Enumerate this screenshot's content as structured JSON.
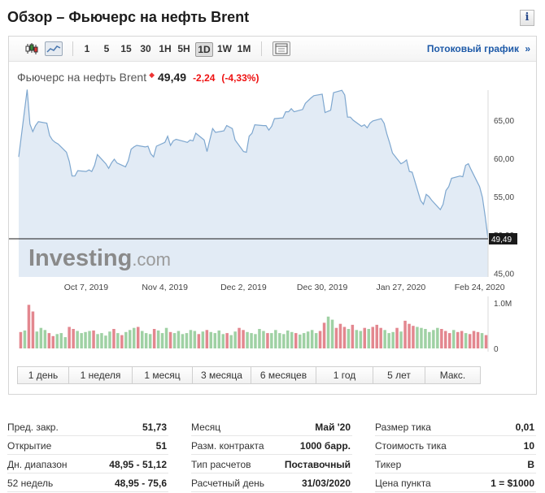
{
  "page": {
    "title": "Обзор – Фьючерс на нефть Brent",
    "info_icon": "i"
  },
  "toolbar": {
    "icons": [
      "candlestick-icon",
      "line-chart-icon"
    ],
    "timeframes": [
      "1",
      "5",
      "15",
      "30",
      "1H",
      "5H",
      "1D",
      "1W",
      "1M"
    ],
    "active_timeframe": "1D",
    "settings_icon": "chart-settings-icon",
    "stream_link": "Потоковый график",
    "stream_arrow": "»"
  },
  "quote": {
    "name": "Фьючерс на нефть Brent",
    "indicator": "◆",
    "price": "49,49",
    "change": "-2,24",
    "change_pct": "(-4,33%)"
  },
  "chart_data": {
    "type": "area",
    "x_tick_labels": [
      "Oct 7, 2019",
      "Nov 4, 2019",
      "Dec 2, 2019",
      "Dec 30, 2019",
      "Jan 27, 2020",
      "Feb 24, 2020"
    ],
    "y_tick_labels": [
      "45,00",
      "50,00",
      "55,00",
      "60,00",
      "65,00"
    ],
    "ylim": [
      44.5,
      68.5
    ],
    "last_price_label": "49,49",
    "last_price": 49.49,
    "volume_tick_labels": [
      "1.0M",
      "0"
    ],
    "volume_max": 1000000,
    "watermark": "Investing",
    "watermark_suffix": ".com",
    "colors": {
      "line": "#7ea7cf",
      "fill": "#e2ebf5",
      "up_volume": "#9fd1a4",
      "down_volume": "#e3878f",
      "last_line": "#1a1a1a"
    },
    "series": [
      {
        "dates": [
          "2019-09-13",
          "2019-09-16",
          "2019-09-17",
          "2019-09-18",
          "2019-09-19",
          "2019-09-20",
          "2019-09-23",
          "2019-09-24",
          "2019-09-25",
          "2019-09-26",
          "2019-09-27",
          "2019-09-30",
          "2019-10-01",
          "2019-10-02",
          "2019-10-03",
          "2019-10-04",
          "2019-10-07",
          "2019-10-08",
          "2019-10-09",
          "2019-10-10",
          "2019-10-11",
          "2019-10-14",
          "2019-10-15",
          "2019-10-16",
          "2019-10-17",
          "2019-10-18",
          "2019-10-21",
          "2019-10-22",
          "2019-10-23",
          "2019-10-24",
          "2019-10-25",
          "2019-10-28",
          "2019-10-29",
          "2019-10-30",
          "2019-10-31",
          "2019-11-01",
          "2019-11-04",
          "2019-11-05",
          "2019-11-06",
          "2019-11-07",
          "2019-11-08",
          "2019-11-11",
          "2019-11-12",
          "2019-11-13",
          "2019-11-14",
          "2019-11-15",
          "2019-11-18",
          "2019-11-19",
          "2019-11-20",
          "2019-11-21",
          "2019-11-22",
          "2019-11-25",
          "2019-11-26",
          "2019-11-27",
          "2019-11-28",
          "2019-11-29",
          "2019-12-02",
          "2019-12-03",
          "2019-12-04",
          "2019-12-05",
          "2019-12-06",
          "2019-12-09",
          "2019-12-10",
          "2019-12-11",
          "2019-12-12",
          "2019-12-13",
          "2019-12-16",
          "2019-12-17",
          "2019-12-18",
          "2019-12-19",
          "2019-12-20",
          "2019-12-23",
          "2019-12-24",
          "2019-12-26",
          "2019-12-27",
          "2019-12-30",
          "2019-12-31",
          "2020-01-02",
          "2020-01-03",
          "2020-01-06",
          "2020-01-07",
          "2020-01-08",
          "2020-01-09",
          "2020-01-10",
          "2020-01-13",
          "2020-01-14",
          "2020-01-15",
          "2020-01-16",
          "2020-01-17",
          "2020-01-20",
          "2020-01-21",
          "2020-01-22",
          "2020-01-23",
          "2020-01-24",
          "2020-01-27",
          "2020-01-28",
          "2020-01-29",
          "2020-01-30",
          "2020-01-31",
          "2020-02-03",
          "2020-02-04",
          "2020-02-05",
          "2020-02-06",
          "2020-02-07",
          "2020-02-10",
          "2020-02-11",
          "2020-02-12",
          "2020-02-13",
          "2020-02-14",
          "2020-02-17",
          "2020-02-18",
          "2020-02-19",
          "2020-02-20",
          "2020-02-21",
          "2020-02-24",
          "2020-02-25",
          "2020-02-26",
          "2020-02-27"
        ],
        "close": [
          60.2,
          69.0,
          64.5,
          63.5,
          64.3,
          64.8,
          64.6,
          63.0,
          62.4,
          62.1,
          61.9,
          60.8,
          59.6,
          57.7,
          57.7,
          58.4,
          58.3,
          58.5,
          58.3,
          59.1,
          60.5,
          59.3,
          58.7,
          59.4,
          59.9,
          59.4,
          58.9,
          59.7,
          61.2,
          61.5,
          61.7,
          61.5,
          61.6,
          60.6,
          60.2,
          61.6,
          62.1,
          62.9,
          61.7,
          62.3,
          62.5,
          62.2,
          62.1,
          62.4,
          62.3,
          63.3,
          62.4,
          60.9,
          62.4,
          63.9,
          63.4,
          63.6,
          64.3,
          64.1,
          63.9,
          62.4,
          60.9,
          60.8,
          62.9,
          63.3,
          64.4,
          64.3,
          64.3,
          63.7,
          64.2,
          65.2,
          65.3,
          66.1,
          66.1,
          66.5,
          66.1,
          66.4,
          67.2,
          67.9,
          68.2,
          68.4,
          66.0,
          66.3,
          68.6,
          68.9,
          68.3,
          65.4,
          65.4,
          65.0,
          64.2,
          64.4,
          64.0,
          64.6,
          64.9,
          65.2,
          64.6,
          63.2,
          62.0,
          60.7,
          59.3,
          59.5,
          59.8,
          58.3,
          58.2,
          54.5,
          54.0,
          55.3,
          55.0,
          54.5,
          53.3,
          54.0,
          55.8,
          56.3,
          57.4,
          57.7,
          57.6,
          59.1,
          59.3,
          58.5,
          56.3,
          54.9,
          52.4,
          49.49
        ]
      }
    ],
    "volume": [
      {
        "value": 0.32,
        "up": false
      },
      {
        "value": 0.35,
        "up": true
      },
      {
        "value": 0.85,
        "up": false
      },
      {
        "value": 0.72,
        "up": false
      },
      {
        "value": 0.33,
        "up": true
      },
      {
        "value": 0.4,
        "up": true
      },
      {
        "value": 0.36,
        "up": true
      },
      {
        "value": 0.3,
        "up": false
      },
      {
        "value": 0.24,
        "up": false
      },
      {
        "value": 0.28,
        "up": true
      },
      {
        "value": 0.3,
        "up": true
      },
      {
        "value": 0.22,
        "up": true
      },
      {
        "value": 0.42,
        "up": false
      },
      {
        "value": 0.38,
        "up": false
      },
      {
        "value": 0.34,
        "up": true
      },
      {
        "value": 0.3,
        "up": true
      },
      {
        "value": 0.32,
        "up": true
      },
      {
        "value": 0.34,
        "up": true
      },
      {
        "value": 0.35,
        "up": false
      },
      {
        "value": 0.28,
        "up": true
      },
      {
        "value": 0.3,
        "up": true
      },
      {
        "value": 0.25,
        "up": true
      },
      {
        "value": 0.33,
        "up": true
      },
      {
        "value": 0.38,
        "up": false
      },
      {
        "value": 0.3,
        "up": true
      },
      {
        "value": 0.26,
        "up": false
      },
      {
        "value": 0.32,
        "up": true
      },
      {
        "value": 0.36,
        "up": true
      },
      {
        "value": 0.4,
        "up": true
      },
      {
        "value": 0.42,
        "up": false
      },
      {
        "value": 0.34,
        "up": true
      },
      {
        "value": 0.3,
        "up": true
      },
      {
        "value": 0.28,
        "up": true
      },
      {
        "value": 0.38,
        "up": false
      },
      {
        "value": 0.35,
        "up": true
      },
      {
        "value": 0.3,
        "up": true
      },
      {
        "value": 0.4,
        "up": true
      },
      {
        "value": 0.32,
        "up": false
      },
      {
        "value": 0.3,
        "up": true
      },
      {
        "value": 0.34,
        "up": true
      },
      {
        "value": 0.28,
        "up": true
      },
      {
        "value": 0.3,
        "up": true
      },
      {
        "value": 0.36,
        "up": true
      },
      {
        "value": 0.34,
        "up": true
      },
      {
        "value": 0.28,
        "up": false
      },
      {
        "value": 0.33,
        "up": true
      },
      {
        "value": 0.36,
        "up": false
      },
      {
        "value": 0.32,
        "up": true
      },
      {
        "value": 0.3,
        "up": true
      },
      {
        "value": 0.35,
        "up": true
      },
      {
        "value": 0.28,
        "up": true
      },
      {
        "value": 0.3,
        "up": false
      },
      {
        "value": 0.26,
        "up": true
      },
      {
        "value": 0.33,
        "up": true
      },
      {
        "value": 0.4,
        "up": false
      },
      {
        "value": 0.36,
        "up": false
      },
      {
        "value": 0.32,
        "up": true
      },
      {
        "value": 0.3,
        "up": true
      },
      {
        "value": 0.28,
        "up": true
      },
      {
        "value": 0.38,
        "up": true
      },
      {
        "value": 0.34,
        "up": true
      },
      {
        "value": 0.3,
        "up": false
      },
      {
        "value": 0.3,
        "up": true
      },
      {
        "value": 0.36,
        "up": true
      },
      {
        "value": 0.3,
        "up": true
      },
      {
        "value": 0.28,
        "up": true
      },
      {
        "value": 0.35,
        "up": true
      },
      {
        "value": 0.32,
        "up": true
      },
      {
        "value": 0.3,
        "up": false
      },
      {
        "value": 0.27,
        "up": true
      },
      {
        "value": 0.3,
        "up": true
      },
      {
        "value": 0.33,
        "up": true
      },
      {
        "value": 0.36,
        "up": true
      },
      {
        "value": 0.3,
        "up": true
      },
      {
        "value": 0.34,
        "up": false
      },
      {
        "value": 0.5,
        "up": false
      },
      {
        "value": 0.62,
        "up": true
      },
      {
        "value": 0.56,
        "up": true
      },
      {
        "value": 0.4,
        "up": false
      },
      {
        "value": 0.48,
        "up": false
      },
      {
        "value": 0.42,
        "up": false
      },
      {
        "value": 0.38,
        "up": true
      },
      {
        "value": 0.46,
        "up": false
      },
      {
        "value": 0.36,
        "up": true
      },
      {
        "value": 0.34,
        "up": true
      },
      {
        "value": 0.4,
        "up": false
      },
      {
        "value": 0.38,
        "up": true
      },
      {
        "value": 0.42,
        "up": false
      },
      {
        "value": 0.46,
        "up": false
      },
      {
        "value": 0.4,
        "up": false
      },
      {
        "value": 0.36,
        "up": true
      },
      {
        "value": 0.3,
        "up": true
      },
      {
        "value": 0.32,
        "up": true
      },
      {
        "value": 0.4,
        "up": false
      },
      {
        "value": 0.33,
        "up": true
      },
      {
        "value": 0.54,
        "up": false
      },
      {
        "value": 0.48,
        "up": false
      },
      {
        "value": 0.44,
        "up": false
      },
      {
        "value": 0.42,
        "up": true
      },
      {
        "value": 0.4,
        "up": true
      },
      {
        "value": 0.38,
        "up": true
      },
      {
        "value": 0.32,
        "up": true
      },
      {
        "value": 0.36,
        "up": true
      },
      {
        "value": 0.4,
        "up": true
      },
      {
        "value": 0.38,
        "up": false
      },
      {
        "value": 0.34,
        "up": false
      },
      {
        "value": 0.3,
        "up": false
      },
      {
        "value": 0.36,
        "up": true
      },
      {
        "value": 0.32,
        "up": false
      },
      {
        "value": 0.34,
        "up": false
      },
      {
        "value": 0.3,
        "up": true
      },
      {
        "value": 0.28,
        "up": false
      },
      {
        "value": 0.34,
        "up": false
      },
      {
        "value": 0.32,
        "up": false
      },
      {
        "value": 0.3,
        "up": true
      },
      {
        "value": 0.26,
        "up": false
      }
    ]
  },
  "ranges": [
    "1 день",
    "1 неделя",
    "1 месяц",
    "3 месяца",
    "6 месяцев",
    "1 год",
    "5 лет",
    "Макс."
  ],
  "stats": {
    "col1": [
      {
        "label": "Пред. закр.",
        "value": "51,73"
      },
      {
        "label": "Открытие",
        "value": "51"
      },
      {
        "label": "Дн. диапазон",
        "value": "48,95 - 51,12"
      },
      {
        "label": "52 недель",
        "value": "48,95 - 75,6"
      }
    ],
    "col2": [
      {
        "label": "Месяц",
        "value": "Май '20"
      },
      {
        "label": "Разм. контракта",
        "value": "1000 барр."
      },
      {
        "label": "Тип расчетов",
        "value": "Поставочный"
      },
      {
        "label": "Расчетный день",
        "value": "31/03/2020"
      }
    ],
    "col3": [
      {
        "label": "Размер тика",
        "value": "0,01"
      },
      {
        "label": "Стоимость тика",
        "value": "10"
      },
      {
        "label": "Тикер",
        "value": "B"
      },
      {
        "label": "Цена пункта",
        "value": "1 = $1000"
      }
    ]
  }
}
